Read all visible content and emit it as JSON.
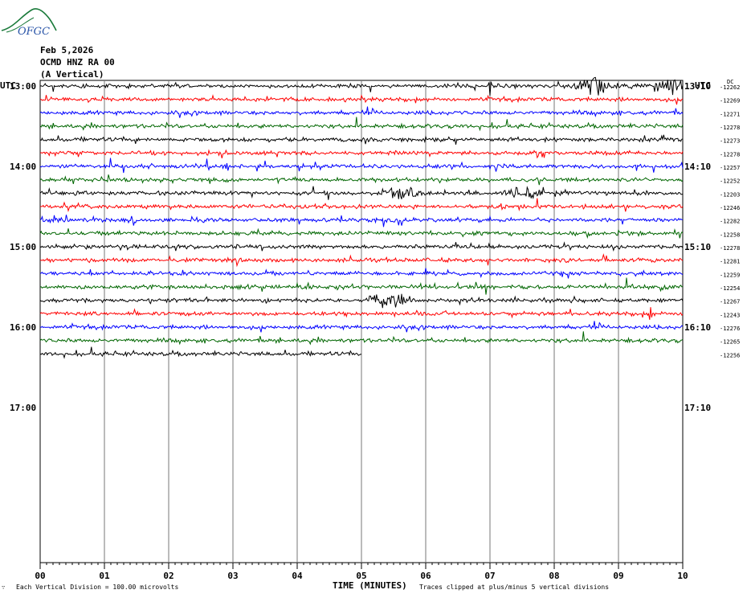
{
  "header": {
    "logo_text": "OFGC",
    "date": "Feb 5,2026",
    "station": "OCMD HNZ RA 00",
    "component": "(A Vertical)"
  },
  "left_tz": "UTC",
  "right_tz": "UTC",
  "dc_label": "DC",
  "footer": {
    "scale_note": "Each Vertical Division =  100.00 microvolts",
    "clip_note": "Traces clipped at plus/minus 5 vertical divisions",
    "corner_mark": "∵"
  },
  "colors": [
    "#000000",
    "#ff0000",
    "#0000ff",
    "#006600"
  ],
  "chart_data": {
    "type": "line",
    "title": "OCMD HNZ RA 00 (A Vertical)",
    "xlabel": "TIME (MINUTES)",
    "xlim": [
      0,
      10
    ],
    "x_ticks": [
      "00",
      "01",
      "02",
      "03",
      "04",
      "05",
      "06",
      "07",
      "08",
      "09",
      "10"
    ],
    "left_hour_labels": [
      "13:00",
      "14:00",
      "15:00",
      "16:00",
      "17:00"
    ],
    "right_hour_labels": [
      "13:10",
      "14:10",
      "15:10",
      "16:10",
      "17:10"
    ],
    "rows_per_hour": 6,
    "first_row_offset": -6,
    "total_rows": 36,
    "dc_offsets": [
      -12262,
      -12269,
      -12271,
      -12278,
      -12273,
      -12278,
      -12257,
      -12252,
      -12203,
      -12246,
      -12282,
      -12258,
      -12278,
      -12281,
      -12259,
      -12254,
      -12267,
      -12243,
      -12276,
      -12265,
      -12256
    ],
    "trace_end_minutes": [
      10,
      10,
      10,
      10,
      10,
      10,
      10,
      10,
      10,
      10,
      10,
      10,
      10,
      10,
      10,
      10,
      10,
      10,
      10,
      10,
      5
    ],
    "events": [
      {
        "row": 0,
        "minute": 7.0,
        "note": "spike"
      },
      {
        "row": 0,
        "minute": 8.6,
        "note": "burst"
      },
      {
        "row": 0,
        "minute": 9.8,
        "note": "burst"
      },
      {
        "row": 8,
        "minute": 5.6,
        "note": "burst"
      },
      {
        "row": 8,
        "minute": 7.5,
        "note": "burst"
      },
      {
        "row": 16,
        "minute": 5.4,
        "note": "burst"
      },
      {
        "row": 17,
        "minute": 9.5,
        "note": "spike"
      }
    ]
  }
}
